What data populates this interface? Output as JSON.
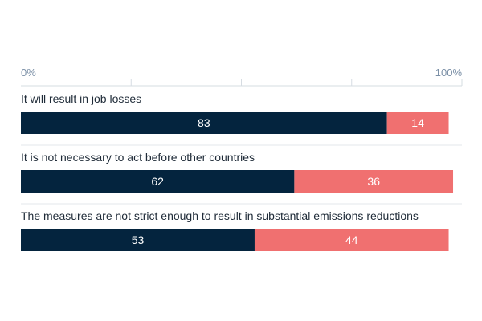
{
  "chart_data": {
    "type": "bar",
    "orientation": "horizontal",
    "stacked": true,
    "xlim": [
      0,
      100
    ],
    "x_ticks": [
      "0%",
      "100%"
    ],
    "categories": [
      "It will result in job losses",
      "It is not necessary to act before other countries",
      "The measures are not strict enough to result in substantial emissions reductions"
    ],
    "series": [
      {
        "values": [
          83,
          62,
          53
        ],
        "color": "#04243e"
      },
      {
        "values": [
          14,
          36,
          44
        ],
        "color": "#f07070"
      }
    ],
    "grid": true,
    "legend": "none"
  }
}
